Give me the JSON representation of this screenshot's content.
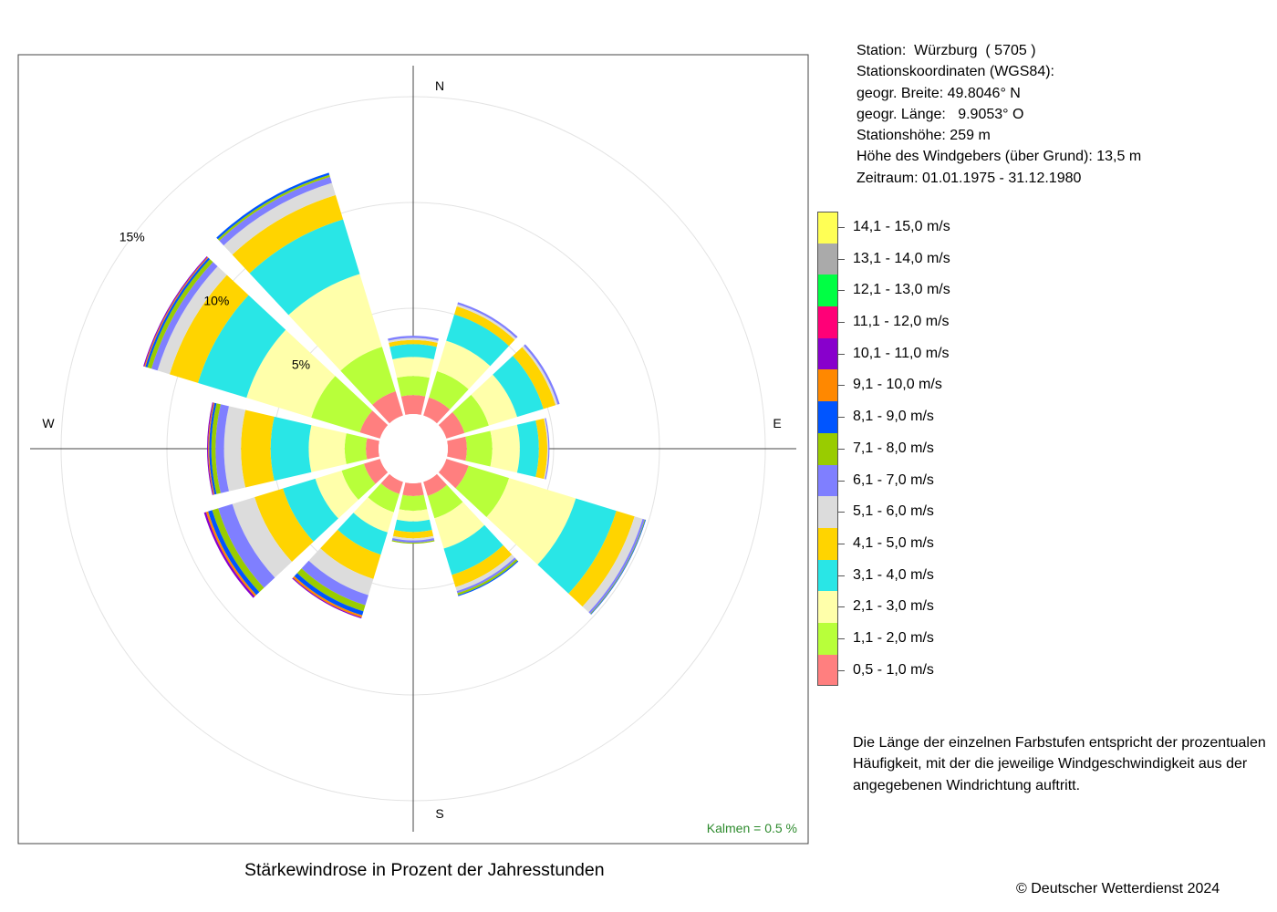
{
  "info": {
    "station": "Station:  Würzburg  ( 5705 )",
    "coords_heading": "Stationskoordinaten (WGS84):",
    "latitude": "geogr. Breite: 49.8046° N",
    "longitude": "geogr. Länge:   9.9053° O",
    "elevation": "Stationshöhe: 259 m",
    "anemometer_height": "Höhe des Windgebers (über Grund): 13,5 m",
    "period": "Zeitraum: 01.01.1975 - 31.12.1980"
  },
  "note": "Die Länge der einzelnen Farbstufen entspricht der prozentualen Häufigkeit, mit der die jeweilige Windgeschwindigkeit aus der angegebenen Windrichtung auftritt.",
  "title": "Stärkewindrose in Prozent der Jahresstunden",
  "copyright": "© Deutscher Wetterdienst  2024",
  "calm_label": "Kalmen  =  0.5 %",
  "chart_data": {
    "type": "wind_rose",
    "title": "Stärkewindrose in Prozent der Jahresstunden",
    "unit": "% der Jahresstunden",
    "directions": [
      "N",
      "30°",
      "60°",
      "E",
      "120°",
      "150°",
      "S",
      "210°",
      "240°",
      "W",
      "300°",
      "330°"
    ],
    "compass_labels": [
      "N",
      "E",
      "S",
      "W"
    ],
    "ring_labels": [
      "5%",
      "10%",
      "15%"
    ],
    "rings": [
      5,
      10,
      15
    ],
    "calm_percent": 0.5,
    "speed_classes": [
      {
        "label": "0,5 - 1,0 m/s",
        "color": "#FF7F7F"
      },
      {
        "label": "1,1 - 2,0 m/s",
        "color": "#B8FF3A"
      },
      {
        "label": "2,1 - 3,0 m/s",
        "color": "#FFFFAA"
      },
      {
        "label": "3,1 - 4,0 m/s",
        "color": "#29E6E6"
      },
      {
        "label": "4,1 - 5,0 m/s",
        "color": "#FFD400"
      },
      {
        "label": "5,1 - 6,0 m/s",
        "color": "#DCDCDC"
      },
      {
        "label": "6,1 - 7,0 m/s",
        "color": "#7F7FFF"
      },
      {
        "label": "7,1 - 8,0 m/s",
        "color": "#99CC00"
      },
      {
        "label": "8,1 - 9,0 m/s",
        "color": "#0055FF"
      },
      {
        "label": "9,1 - 10,0 m/s",
        "color": "#FF8800"
      },
      {
        "label": "10,1 - 11,0 m/s",
        "color": "#8800CC"
      },
      {
        "label": "11,1 - 12,0 m/s",
        "color": "#FF0077"
      },
      {
        "label": "12,1 - 13,0 m/s",
        "color": "#00FF44"
      },
      {
        "label": "13,1 - 14,0 m/s",
        "color": "#AAAAAA"
      },
      {
        "label": "14,1 - 15,0 m/s",
        "color": "#FFFF55"
      }
    ],
    "series": [
      {
        "direction": "N",
        "values": [
          0.9,
          0.9,
          0.9,
          0.6,
          0.2,
          0.1,
          0.1,
          0,
          0,
          0,
          0,
          0,
          0,
          0,
          0
        ]
      },
      {
        "direction": "30°",
        "values": [
          0.9,
          1.3,
          1.5,
          1.3,
          0.4,
          0.1,
          0.1,
          0,
          0,
          0,
          0,
          0,
          0,
          0,
          0
        ]
      },
      {
        "direction": "60°",
        "values": [
          0.9,
          1.2,
          1.4,
          1.3,
          0.6,
          0.1,
          0.1,
          0,
          0,
          0,
          0,
          0,
          0,
          0,
          0
        ]
      },
      {
        "direction": "E",
        "values": [
          0.9,
          1.2,
          1.3,
          0.9,
          0.4,
          0.05,
          0.05,
          0,
          0,
          0,
          0,
          0,
          0,
          0,
          0
        ]
      },
      {
        "direction": "120°",
        "values": [
          1.1,
          2.0,
          3.3,
          2.0,
          0.9,
          0.4,
          0.1,
          0.03,
          0.03,
          0,
          0,
          0,
          0,
          0,
          0
        ]
      },
      {
        "direction": "150°",
        "values": [
          0.7,
          1.1,
          1.5,
          1.3,
          0.6,
          0.2,
          0.1,
          0.1,
          0.05,
          0,
          0,
          0,
          0,
          0,
          0
        ]
      },
      {
        "direction": "S",
        "values": [
          0.6,
          0.7,
          0.5,
          0.5,
          0.3,
          0.1,
          0.1,
          0.05,
          0,
          0,
          0,
          0,
          0,
          0,
          0
        ]
      },
      {
        "direction": "210°",
        "values": [
          0.6,
          0.9,
          1.0,
          1.1,
          1.2,
          0.8,
          0.5,
          0.3,
          0.2,
          0.1,
          0.05,
          0,
          0,
          0,
          0
        ]
      },
      {
        "direction": "240°",
        "values": [
          0.8,
          1.1,
          1.3,
          1.6,
          1.4,
          1.1,
          0.7,
          0.3,
          0.2,
          0.1,
          0.1,
          0,
          0,
          0,
          0
        ]
      },
      {
        "direction": "W",
        "values": [
          0.6,
          1.0,
          1.7,
          1.8,
          1.4,
          0.8,
          0.4,
          0.2,
          0.1,
          0.05,
          0.05,
          0,
          0,
          0,
          0
        ]
      },
      {
        "direction": "300°",
        "values": [
          1.0,
          2.4,
          3.2,
          2.4,
          1.4,
          0.6,
          0.3,
          0.2,
          0.1,
          0.05,
          0.05,
          0,
          0,
          0,
          0
        ]
      },
      {
        "direction": "330°",
        "values": [
          1.2,
          2.2,
          3.6,
          2.7,
          1.2,
          0.6,
          0.3,
          0.1,
          0.1,
          0,
          0,
          0,
          0,
          0,
          0
        ]
      }
    ],
    "legend_position": "right",
    "grid": true
  }
}
